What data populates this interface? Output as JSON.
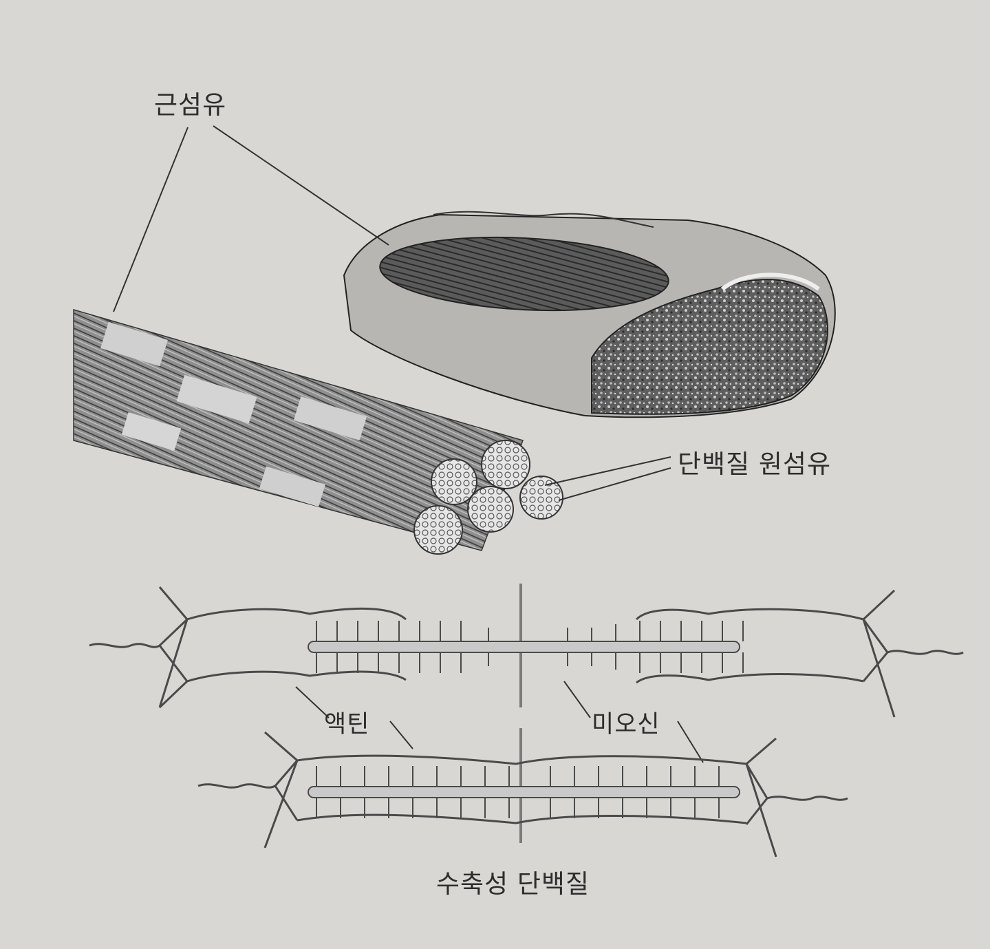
{
  "labels": {
    "muscle_fiber": "근섬유",
    "protein_fibril": "단백질 원섬유",
    "actin": "액틴",
    "myosin": "미오신",
    "caption": "수축성 단백질"
  },
  "colors": {
    "background": "#d9d7d4",
    "ink": "#2d2d2d",
    "sheath": "#b5b3b0",
    "section": "#4a4a4a",
    "filament": "#5a5a5a"
  }
}
